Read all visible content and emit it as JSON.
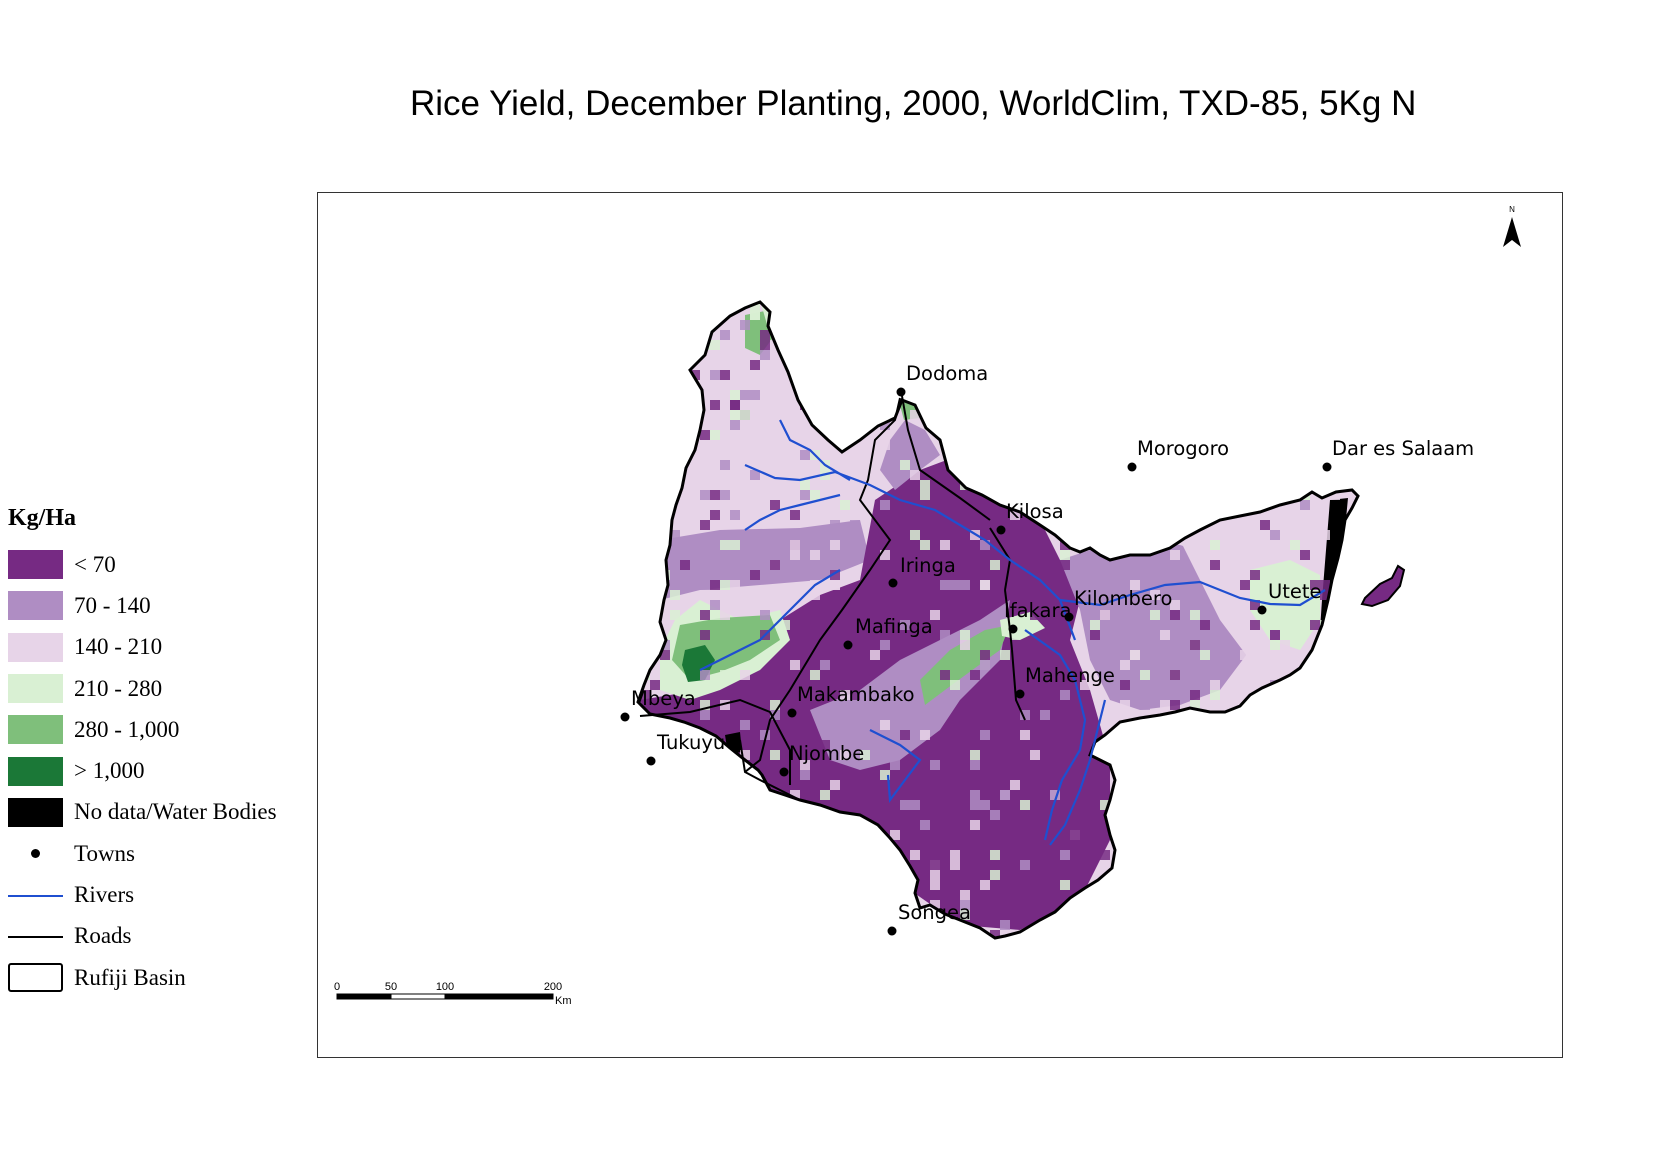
{
  "title": "Rice Yield, December Planting, 2000, WorldClim, TXD-85, 5Kg N",
  "legend": {
    "title": "Kg/Ha",
    "classes": [
      {
        "label": "< 70",
        "color": "#762a83"
      },
      {
        "label": "70 - 140",
        "color": "#af8dc3"
      },
      {
        "label": "140 - 210",
        "color": "#e7d4e8"
      },
      {
        "label": "210 - 280",
        "color": "#d9f0d3"
      },
      {
        "label": "280 - 1,000",
        "color": "#7fbf7b"
      },
      {
        "label": "> 1,000",
        "color": "#1b7837"
      },
      {
        "label": "No data/Water Bodies",
        "color": "#000000"
      }
    ],
    "towns_label": "Towns",
    "rivers_label": "Rivers",
    "roads_label": "Roads",
    "basin_label": "Rufiji Basin",
    "river_color": "#1f4fd0",
    "road_color": "#000000"
  },
  "towns": [
    {
      "name": "Dodoma"
    },
    {
      "name": "Morogoro"
    },
    {
      "name": "Dar es Salaam"
    },
    {
      "name": "Kilosa"
    },
    {
      "name": "Iringa"
    },
    {
      "name": "Kilombero"
    },
    {
      "name": "Utete"
    },
    {
      "name": "Ifakara"
    },
    {
      "name": "Mafinga"
    },
    {
      "name": "Mahenge"
    },
    {
      "name": "Mbeya"
    },
    {
      "name": "Makambako"
    },
    {
      "name": "Tukuyu"
    },
    {
      "name": "Njombe"
    },
    {
      "name": "Songea"
    }
  ],
  "scale_bar": {
    "ticks": [
      "0",
      "50",
      "100",
      "200"
    ],
    "unit": "Km"
  },
  "north_arrow": {
    "label": "N",
    "icon": "north-arrow-icon"
  }
}
